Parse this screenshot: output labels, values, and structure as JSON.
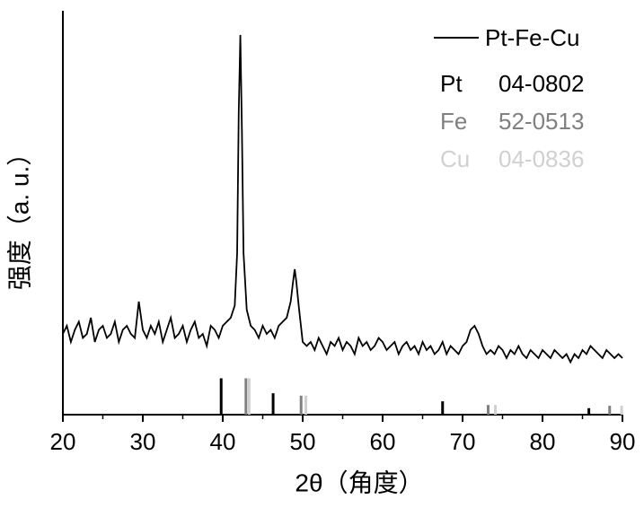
{
  "chart_data": {
    "type": "line",
    "xlabel": "2θ（角度）",
    "ylabel": "强度（a. u.）",
    "xlim": [
      20,
      90
    ],
    "xticks": [
      20,
      30,
      40,
      50,
      60,
      70,
      80,
      90
    ],
    "ylim": [
      0,
      100
    ],
    "series": [
      {
        "name": "Pt-Fe-Cu",
        "color": "#000000",
        "x": [
          20,
          20.5,
          21,
          21.5,
          22,
          22.5,
          23,
          23.5,
          24,
          24.5,
          25,
          25.5,
          26,
          26.5,
          27,
          27.5,
          28,
          28.5,
          29,
          29.5,
          30,
          30.5,
          31,
          31.5,
          32,
          32.5,
          33,
          33.5,
          34,
          34.5,
          35,
          35.5,
          36,
          36.5,
          37,
          37.5,
          38,
          38.5,
          39,
          39.5,
          40,
          40.5,
          41,
          41.5,
          41.8,
          42.0,
          42.2,
          42.4,
          42.6,
          43,
          43.5,
          44,
          44.5,
          45,
          45.5,
          46,
          46.5,
          47,
          47.5,
          48,
          48.5,
          48.8,
          49.0,
          49.2,
          49.5,
          50,
          50.5,
          51,
          51.5,
          52,
          52.5,
          53,
          53.5,
          54,
          54.5,
          55,
          55.5,
          56,
          56.5,
          57,
          57.5,
          58,
          58.5,
          59,
          59.5,
          60,
          60.5,
          61,
          61.5,
          62,
          62.5,
          63,
          63.5,
          64,
          64.5,
          65,
          65.5,
          66,
          66.5,
          67,
          67.5,
          68,
          68.5,
          69,
          69.5,
          70,
          70.5,
          71,
          71.5,
          72,
          72.5,
          73,
          73.5,
          74,
          74.5,
          75,
          75.5,
          76,
          76.5,
          77,
          77.5,
          78,
          78.5,
          79,
          79.5,
          80,
          80.5,
          81,
          81.5,
          82,
          82.5,
          83,
          83.5,
          84,
          84.5,
          85,
          85.5,
          86,
          86.5,
          87,
          87.5,
          88,
          88.5,
          89,
          89.5,
          90
        ],
        "values": [
          20,
          22,
          18,
          21,
          23,
          19,
          20,
          24,
          18,
          21,
          22,
          19,
          20,
          23,
          18,
          21,
          22,
          20,
          19,
          28,
          21,
          19,
          22,
          20,
          23,
          18,
          21,
          24,
          19,
          20,
          22,
          18,
          21,
          23,
          19,
          20,
          17,
          22,
          21,
          19,
          22,
          23,
          24,
          27,
          40,
          75,
          94,
          70,
          40,
          26,
          22,
          21,
          19,
          22,
          20,
          21,
          19,
          22,
          23,
          24,
          28,
          33,
          36,
          33,
          27,
          18,
          17,
          18,
          16,
          19,
          17,
          15,
          18,
          17,
          19,
          16,
          18,
          17,
          15,
          19,
          17,
          18,
          16,
          17,
          19,
          18,
          16,
          17,
          18,
          15,
          17,
          18,
          16,
          17,
          15,
          18,
          16,
          17,
          15,
          16,
          18,
          15,
          17,
          16,
          15,
          17,
          18,
          21,
          22,
          20,
          17,
          15,
          16,
          15,
          17,
          16,
          14,
          16,
          15,
          17,
          15,
          14,
          16,
          15,
          14,
          16,
          15,
          14,
          16,
          15,
          14,
          15,
          13,
          15,
          14,
          16,
          15,
          17,
          16,
          15,
          14,
          16,
          15,
          14,
          15,
          14
        ]
      }
    ],
    "references": [
      {
        "name": "Pt",
        "card": "04-0802",
        "color": "#000000",
        "positions": [
          39.8,
          46.3,
          67.5,
          85.8
        ],
        "heights": [
          9,
          5.3,
          3.3,
          1.6
        ]
      },
      {
        "name": "Fe",
        "card": "52-0513",
        "color": "#808080",
        "positions": [
          42.9,
          49.8,
          73.2,
          88.4
        ],
        "heights": [
          9,
          4.7,
          2.4,
          2.2
        ]
      },
      {
        "name": "Cu",
        "card": "04-0836",
        "color": "#d0d0d0",
        "positions": [
          43.3,
          50.4,
          74.1,
          89.9
        ],
        "heights": [
          9,
          4.7,
          2.4,
          2.2
        ]
      }
    ]
  }
}
